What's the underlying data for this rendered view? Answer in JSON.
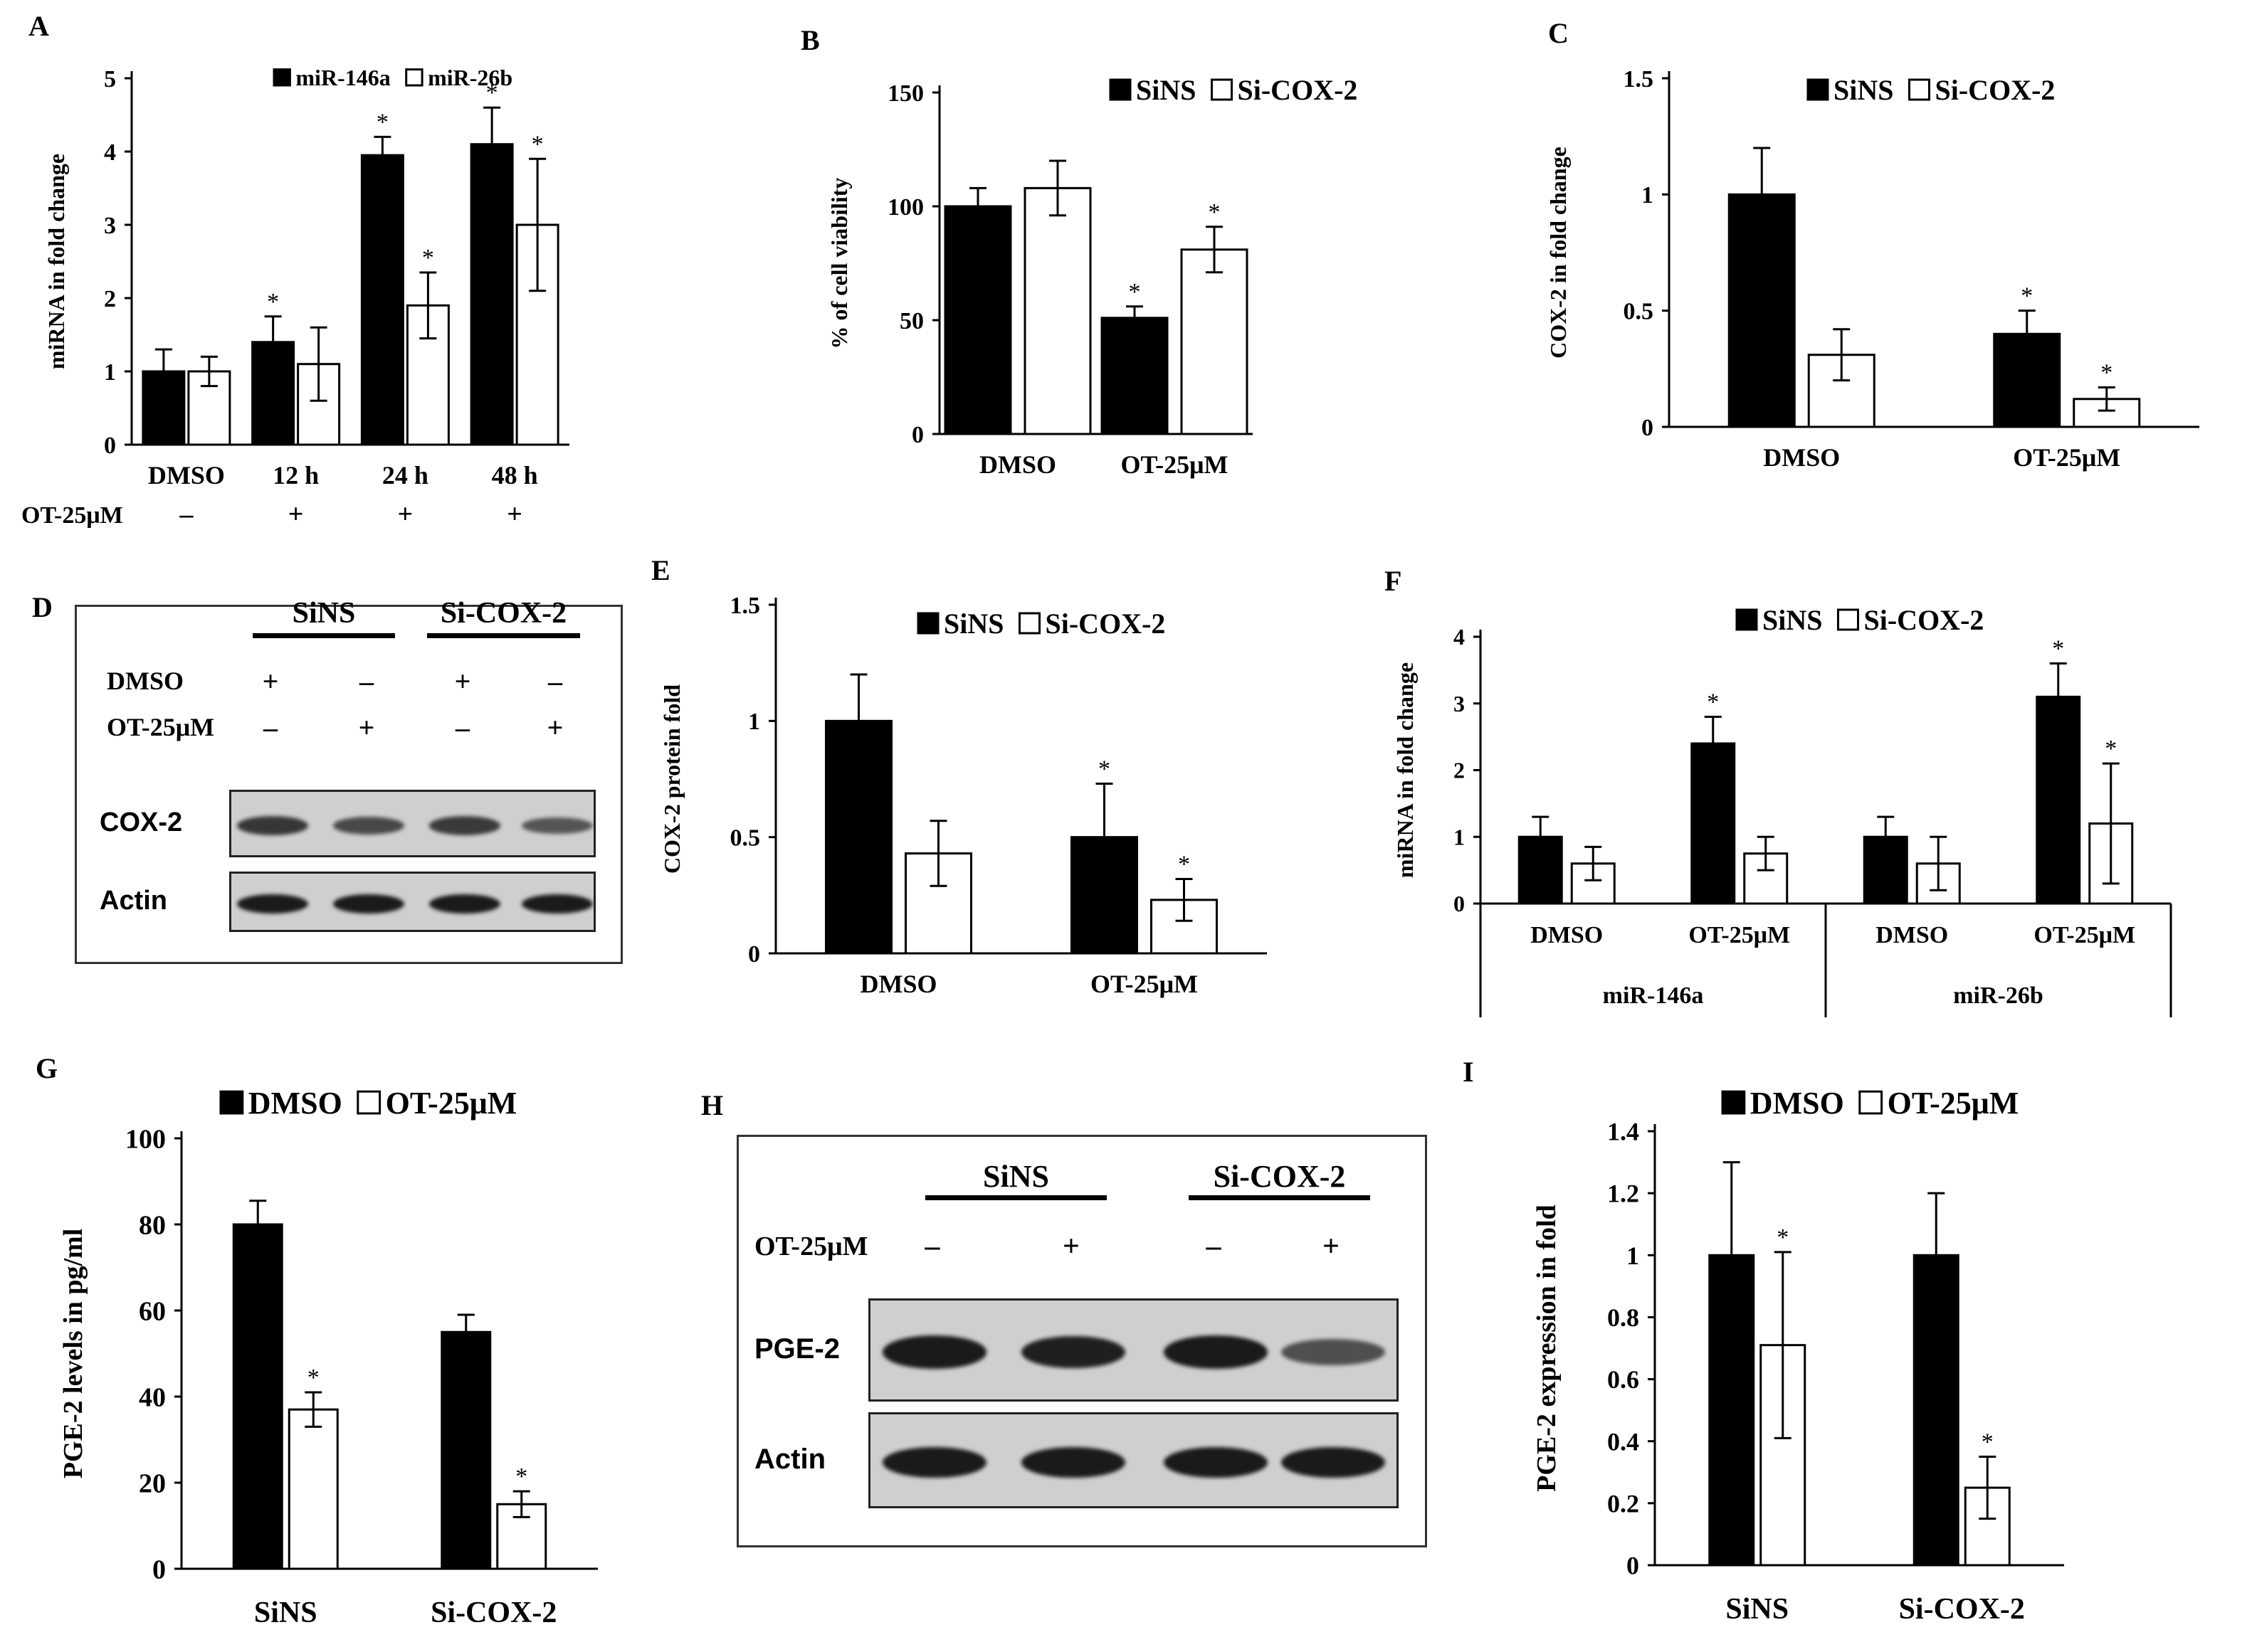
{
  "colors": {
    "series_a": "#000000",
    "series_b": "#ffffff",
    "blot_band": "#1a1a1a",
    "blot_bg": "#cfcfcf"
  },
  "chart_data": [
    {
      "panel": "A",
      "type": "bar",
      "categories": [
        "DMSO",
        "12 h",
        "24 h",
        "48 h"
      ],
      "treatment_label": "OT-25μM",
      "treatment": [
        "–",
        "+",
        "+",
        "+"
      ],
      "series": [
        {
          "name": "miR-146a",
          "values": [
            1.0,
            1.4,
            3.95,
            4.1
          ],
          "errors": [
            0.3,
            0.35,
            0.25,
            0.5
          ],
          "sig": [
            false,
            true,
            true,
            true
          ]
        },
        {
          "name": "miR-26b",
          "values": [
            1.0,
            1.1,
            1.9,
            3.0
          ],
          "errors": [
            0.2,
            0.5,
            0.45,
            0.9
          ],
          "sig": [
            false,
            false,
            true,
            true
          ]
        }
      ],
      "ylabel": "miRNA  in fold change",
      "ylim": [
        0,
        5
      ],
      "yticks": [
        "0",
        "1",
        "2",
        "3",
        "4",
        "5"
      ],
      "grid": false,
      "legend": "top"
    },
    {
      "panel": "B",
      "type": "bar",
      "categories": [
        "DMSO",
        "OT-25μM"
      ],
      "series": [
        {
          "name": "SiNS",
          "values": [
            100,
            51
          ],
          "errors": [
            8,
            5
          ],
          "sig": [
            false,
            true
          ]
        },
        {
          "name": "Si-COX-2",
          "values": [
            108,
            81
          ],
          "errors": [
            12,
            10
          ],
          "sig": [
            false,
            true
          ]
        }
      ],
      "ylabel": "% of cell viability",
      "ylim": [
        0,
        150
      ],
      "yticks": [
        "0",
        "50",
        "100",
        "150"
      ],
      "grid": false,
      "legend": "top"
    },
    {
      "panel": "C",
      "type": "bar",
      "categories": [
        "DMSO",
        "OT-25μM"
      ],
      "series": [
        {
          "name": "SiNS",
          "values": [
            1.0,
            0.4
          ],
          "errors": [
            0.2,
            0.1
          ],
          "sig": [
            false,
            true
          ]
        },
        {
          "name": "Si-COX-2",
          "values": [
            0.31,
            0.12
          ],
          "errors": [
            0.11,
            0.05
          ],
          "sig": [
            false,
            true
          ]
        }
      ],
      "ylabel": "COX-2  in fold change",
      "ylim": [
        0,
        1.5
      ],
      "yticks": [
        "0",
        "0.5",
        "1",
        "1.5"
      ],
      "grid": false,
      "legend": "top"
    },
    {
      "panel": "E",
      "type": "bar",
      "categories": [
        "DMSO",
        "OT-25μM"
      ],
      "series": [
        {
          "name": "SiNS",
          "values": [
            1.0,
            0.5
          ],
          "errors": [
            0.2,
            0.23
          ],
          "sig": [
            false,
            true
          ]
        },
        {
          "name": "Si-COX-2",
          "values": [
            0.43,
            0.23
          ],
          "errors": [
            0.14,
            0.09
          ],
          "sig": [
            false,
            true
          ]
        }
      ],
      "ylabel": "COX-2  protein fold",
      "ylim": [
        0,
        1.5
      ],
      "yticks": [
        "0",
        "0.5",
        "1",
        "1.5"
      ],
      "grid": false,
      "legend": "top"
    },
    {
      "panel": "F",
      "type": "bar",
      "categories": [
        "DMSO",
        "OT-25μM",
        "DMSO",
        "OT-25μM"
      ],
      "groups": [
        "miR-146a",
        "miR-26b"
      ],
      "series": [
        {
          "name": "SiNS",
          "values": [
            1.0,
            2.4,
            1.0,
            3.1
          ],
          "errors": [
            0.3,
            0.4,
            0.3,
            0.5
          ],
          "sig": [
            false,
            true,
            false,
            true
          ]
        },
        {
          "name": "Si-COX-2",
          "values": [
            0.6,
            0.75,
            0.6,
            1.2
          ],
          "errors": [
            0.25,
            0.25,
            0.4,
            0.9
          ],
          "sig": [
            false,
            false,
            false,
            true
          ]
        }
      ],
      "ylabel": "miRNA  in fold  change",
      "ylim": [
        0,
        4
      ],
      "yticks": [
        "0",
        "1",
        "2",
        "3",
        "4"
      ],
      "grid": false,
      "legend": "top"
    },
    {
      "panel": "G",
      "type": "bar",
      "categories": [
        "SiNS",
        "Si-COX-2"
      ],
      "series": [
        {
          "name": "DMSO",
          "values": [
            80,
            55
          ],
          "errors": [
            5.5,
            4
          ],
          "sig": [
            false,
            false
          ]
        },
        {
          "name": "OT-25μM",
          "values": [
            37,
            15
          ],
          "errors": [
            4,
            3
          ],
          "sig": [
            true,
            true
          ]
        }
      ],
      "ylabel": "PGE-2  levels in pg/ml",
      "ylim": [
        0,
        100
      ],
      "yticks": [
        "0",
        "20",
        "40",
        "60",
        "80",
        "100"
      ],
      "grid": false,
      "legend": "top"
    },
    {
      "panel": "I",
      "type": "bar",
      "categories": [
        "SiNS",
        "Si-COX-2"
      ],
      "series": [
        {
          "name": "DMSO",
          "values": [
            1.0,
            1.0
          ],
          "errors": [
            0.3,
            0.2
          ],
          "sig": [
            false,
            false
          ]
        },
        {
          "name": "OT-25μM",
          "values": [
            0.71,
            0.25
          ],
          "errors": [
            0.3,
            0.1
          ],
          "sig": [
            true,
            true
          ]
        }
      ],
      "ylabel": "PGE-2  expression in fold",
      "ylim": [
        0,
        1.4
      ],
      "yticks": [
        "0",
        "0.2",
        "0.4",
        "0.6",
        "0.8",
        "1",
        "1.2",
        "1.4"
      ],
      "grid": false,
      "legend": "top"
    }
  ],
  "blots": {
    "D": {
      "panel": "D",
      "groups": [
        "SiNS",
        "Si-COX-2"
      ],
      "rows": [
        {
          "label": "DMSO",
          "marks": [
            "+",
            "–",
            "+",
            "–"
          ]
        },
        {
          "label": "OT-25μM",
          "marks": [
            "–",
            "+",
            "–",
            "+"
          ]
        }
      ],
      "bands": [
        {
          "label": "COX-2",
          "intensity": [
            0.75,
            0.6,
            0.72,
            0.5
          ]
        },
        {
          "label": "Actin",
          "intensity": [
            1.0,
            1.0,
            1.0,
            1.0
          ]
        }
      ]
    },
    "H": {
      "panel": "H",
      "groups": [
        "SiNS",
        "Si-COX-2"
      ],
      "rows": [
        {
          "label": "OT-25μM",
          "marks": [
            "–",
            "+",
            "–",
            "+"
          ]
        }
      ],
      "bands": [
        {
          "label": "PGE-2",
          "intensity": [
            1.0,
            0.95,
            1.0,
            0.55
          ]
        },
        {
          "label": "Actin",
          "intensity": [
            1.0,
            1.0,
            1.0,
            1.0
          ]
        }
      ]
    }
  }
}
